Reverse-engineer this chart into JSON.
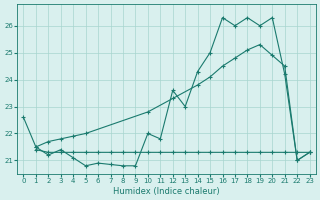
{
  "xlabel": "Humidex (Indice chaleur)",
  "line_color": "#1a7a6e",
  "bg_color": "#d9f0ee",
  "grid_color": "#a8d5cf",
  "xlim": [
    -0.5,
    23.5
  ],
  "ylim": [
    20.5,
    26.8
  ],
  "xticks": [
    0,
    1,
    2,
    3,
    4,
    5,
    6,
    7,
    8,
    9,
    10,
    11,
    12,
    13,
    14,
    15,
    16,
    17,
    18,
    19,
    20,
    21,
    22,
    23
  ],
  "yticks": [
    21,
    22,
    23,
    24,
    25,
    26
  ],
  "series1_x": [
    0,
    1,
    2,
    3,
    4,
    5,
    6,
    7,
    8,
    9,
    10,
    11,
    12,
    13,
    14,
    15,
    16,
    17,
    18,
    19,
    20,
    21,
    22,
    23
  ],
  "series1_y": [
    22.6,
    21.5,
    21.2,
    21.4,
    21.1,
    20.8,
    20.9,
    20.85,
    20.8,
    20.8,
    22.0,
    21.8,
    23.6,
    23.0,
    24.3,
    25.0,
    26.3,
    26.0,
    26.3,
    26.0,
    26.3,
    24.2,
    21.0,
    21.3
  ],
  "series2_x": [
    1,
    2,
    3,
    4,
    5,
    6,
    7,
    8,
    9,
    10,
    11,
    12,
    13,
    14,
    15,
    16,
    17,
    18,
    19,
    20,
    21,
    22,
    23
  ],
  "series2_y": [
    21.4,
    21.3,
    21.3,
    21.3,
    21.3,
    21.3,
    21.3,
    21.3,
    21.3,
    21.3,
    21.3,
    21.3,
    21.3,
    21.3,
    21.3,
    21.3,
    21.3,
    21.3,
    21.3,
    21.3,
    21.3,
    21.3,
    21.3
  ],
  "series3_x": [
    1,
    2,
    3,
    4,
    5,
    10,
    12,
    14,
    15,
    16,
    17,
    18,
    19,
    20,
    21,
    22,
    23
  ],
  "series3_y": [
    21.5,
    21.7,
    21.8,
    21.9,
    22.0,
    22.8,
    23.3,
    23.8,
    24.1,
    24.5,
    24.8,
    25.1,
    25.3,
    24.9,
    24.5,
    21.0,
    21.3
  ]
}
